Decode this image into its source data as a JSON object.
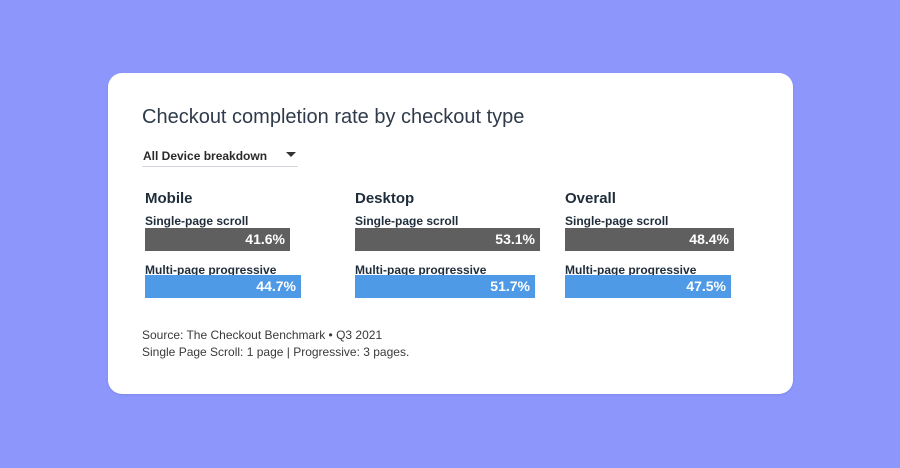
{
  "title": "Checkout completion rate by checkout type",
  "filter": {
    "selected": "All Device breakdown"
  },
  "colors": {
    "single": "#5f5f5f",
    "multi": "#4e9ae6",
    "background": "#8c96fb",
    "card": "#ffffff"
  },
  "chart_data": {
    "type": "bar",
    "title": "Checkout completion rate by checkout type",
    "groups": [
      "Mobile",
      "Desktop",
      "Overall"
    ],
    "series": [
      {
        "name": "Single-page scroll",
        "values": [
          41.6,
          53.1,
          48.4
        ],
        "labels": [
          "41.6%",
          "53.1%",
          "48.4%"
        ]
      },
      {
        "name": "Multi-page progressive",
        "values": [
          44.7,
          51.7,
          47.5
        ],
        "labels": [
          "44.7%",
          "51.7%",
          "47.5%"
        ]
      }
    ],
    "unit": "%"
  },
  "notes": {
    "source": "Source: The Checkout Benchmark • Q3 2021",
    "definition": "Single Page Scroll: 1 page | Progressive: 3 pages."
  }
}
